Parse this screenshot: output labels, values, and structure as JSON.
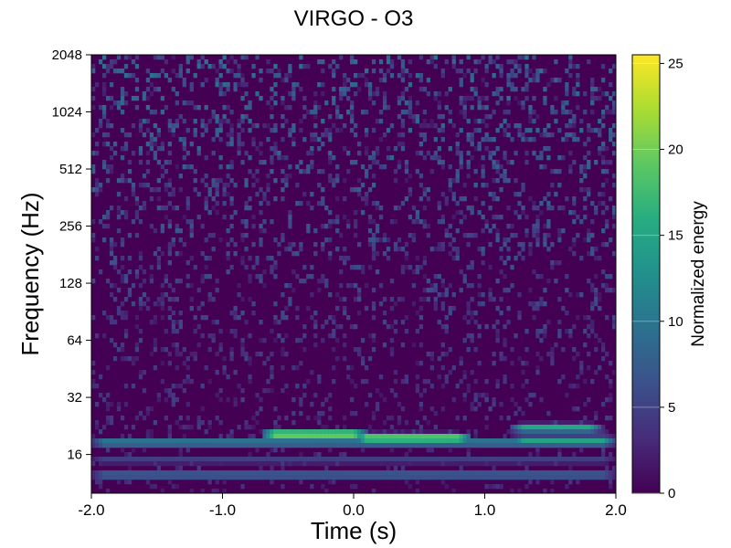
{
  "chart_data": {
    "type": "heatmap",
    "title": "VIRGO - O3",
    "xlabel": "Time (s)",
    "ylabel": "Frequency (Hz)",
    "x_ticks": [
      "-2.0",
      "-1.0",
      "0.0",
      "1.0",
      "2.0"
    ],
    "y_ticks": [
      "16",
      "32",
      "64",
      "128",
      "256",
      "512",
      "1024",
      "2048"
    ],
    "y_scale": "log2",
    "xlim": [
      -2.0,
      2.0
    ],
    "ylim": [
      10,
      2048
    ],
    "colorbar": {
      "label": "Normalized energy",
      "ticks": [
        "0",
        "5",
        "10",
        "15",
        "20",
        "25"
      ],
      "range": [
        0,
        25.5
      ],
      "colormap": "viridis"
    },
    "features": [
      {
        "t_start": -0.7,
        "t_end": 0.1,
        "freq": 20.5,
        "energy": 25
      },
      {
        "t_start": 0.0,
        "t_end": 0.9,
        "freq": 19.5,
        "energy": 24
      },
      {
        "t_start": -2.0,
        "t_end": 2.0,
        "freq": 18.5,
        "energy": 12
      },
      {
        "t_start": 1.2,
        "t_end": 1.9,
        "freq": 22,
        "energy": 17
      },
      {
        "t_start": 1.2,
        "t_end": 2.0,
        "freq": 19,
        "energy": 15
      },
      {
        "t_start": -2.0,
        "t_end": 2.0,
        "freq": 12.5,
        "energy": 9
      },
      {
        "t_start": -2.0,
        "t_end": 2.0,
        "freq": 15,
        "energy": 5
      }
    ]
  }
}
